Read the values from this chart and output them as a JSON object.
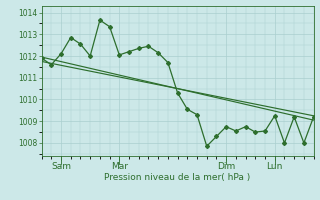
{
  "background_color": "#cce8e8",
  "grid_color": "#aacfcf",
  "line_color": "#2d6e2d",
  "x_tick_labels": [
    "Sam",
    "Mar",
    "Dim",
    "Lun"
  ],
  "ylabel": "Pression niveau de la mer( hPa )",
  "ylim": [
    1007.4,
    1014.3
  ],
  "yticks": [
    1008,
    1009,
    1010,
    1011,
    1012,
    1013,
    1014
  ],
  "xlim": [
    0,
    28
  ],
  "x_tick_positions": [
    2,
    8,
    19,
    24
  ],
  "minor_xticks": [
    0,
    1,
    2,
    3,
    4,
    5,
    6,
    7,
    8,
    9,
    10,
    11,
    12,
    13,
    14,
    15,
    16,
    17,
    18,
    19,
    20,
    21,
    22,
    23,
    24,
    25,
    26,
    27,
    28
  ],
  "data_x": [
    0,
    1,
    2,
    3,
    4,
    5,
    6,
    7,
    8,
    9,
    10,
    11,
    12,
    13,
    14,
    15,
    16,
    17,
    18,
    19,
    20,
    21,
    22,
    23,
    24,
    25,
    26,
    27,
    28
  ],
  "data_y": [
    1011.9,
    1011.6,
    1012.1,
    1012.85,
    1012.55,
    1012.0,
    1013.65,
    1013.35,
    1012.05,
    1012.2,
    1012.35,
    1012.45,
    1012.15,
    1011.7,
    1010.3,
    1009.55,
    1009.3,
    1007.85,
    1008.3,
    1008.75,
    1008.55,
    1008.75,
    1008.5,
    1008.55,
    1009.25,
    1008.0,
    1009.2,
    1008.0,
    1009.2
  ],
  "trend1_x": [
    0,
    28
  ],
  "trend1_y": [
    1011.95,
    1009.05
  ],
  "trend2_x": [
    0,
    28
  ],
  "trend2_y": [
    1011.75,
    1009.25
  ]
}
